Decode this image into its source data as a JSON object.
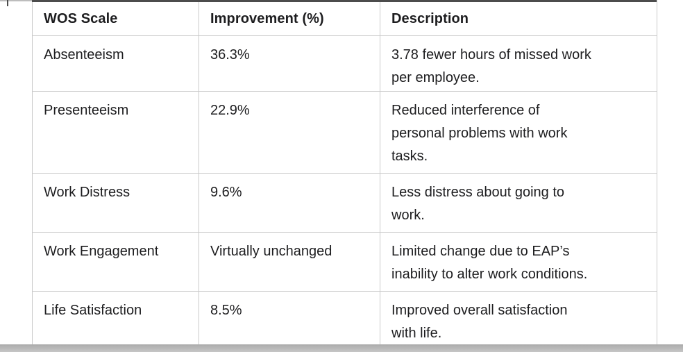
{
  "colors": {
    "text": "#1d1d1f",
    "border": "#c9c9c9",
    "top_rule": "#4c4c4c",
    "left_stub": "#bdbdbd",
    "bottom_bar_dark": "#ababab",
    "bottom_bar_light": "#c6c6c6",
    "bg": "#ffffff"
  },
  "table": {
    "columns": [
      "WOS Scale",
      "Improvement (%)",
      "Description"
    ],
    "rows": [
      {
        "scale": "Absenteeism",
        "improvement": "36.3%",
        "description": "3.78 fewer hours of missed work\nper employee."
      },
      {
        "scale": "Presenteeism",
        "improvement": "22.9%",
        "description": "Reduced interference of\npersonal problems with work\ntasks."
      },
      {
        "scale": "Work Distress",
        "improvement": "9.6%",
        "description": "Less distress about going to\nwork."
      },
      {
        "scale": "Work Engagement",
        "improvement": "Virtually unchanged",
        "description": "Limited change due to EAP’s\ninability to alter work conditions."
      },
      {
        "scale": "Life Satisfaction",
        "improvement": "8.5%",
        "description": "Improved overall satisfaction\nwith life."
      }
    ]
  }
}
